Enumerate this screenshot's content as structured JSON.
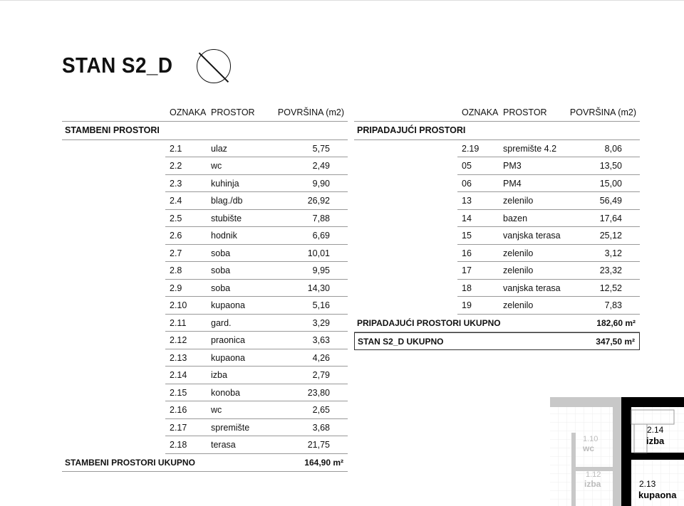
{
  "title": "STAN S2_D",
  "headers": {
    "oznaka": "OZNAKA",
    "prostor": "PROSTOR",
    "povrsina": "POVRŠINA (m2)"
  },
  "left": {
    "section": "STAMBENI PROSTORI",
    "rows": [
      [
        "2.1",
        "ulaz",
        "5,75"
      ],
      [
        "2.2",
        "wc",
        "2,49"
      ],
      [
        "2.3",
        "kuhinja",
        "9,90"
      ],
      [
        "2.4",
        "blag./db",
        "26,92"
      ],
      [
        "2.5",
        "stubište",
        "7,88"
      ],
      [
        "2.6",
        "hodnik",
        "6,69"
      ],
      [
        "2.7",
        "soba",
        "10,01"
      ],
      [
        "2.8",
        "soba",
        "9,95"
      ],
      [
        "2.9",
        "soba",
        "14,30"
      ],
      [
        "2.10",
        "kupaona",
        "5,16"
      ],
      [
        "2.11",
        "gard.",
        "3,29"
      ],
      [
        "2.12",
        "praonica",
        "3,63"
      ],
      [
        "2.13",
        "kupaona",
        "4,26"
      ],
      [
        "2.14",
        "izba",
        "2,79"
      ],
      [
        "2.15",
        "konoba",
        "23,80"
      ],
      [
        "2.16",
        "wc",
        "2,65"
      ],
      [
        "2.17",
        "spremište",
        "3,68"
      ],
      [
        "2.18",
        "terasa",
        "21,75"
      ]
    ],
    "total_label": "STAMBENI PROSTORI UKUPNO",
    "total_value": "164,90 m²"
  },
  "right": {
    "section": "PRIPADAJUĆI PROSTORI",
    "rows": [
      [
        "2.19",
        "spremište 4.2",
        "8,06"
      ],
      [
        "05",
        "PM3",
        "13,50"
      ],
      [
        "06",
        "PM4",
        "15,00"
      ],
      [
        "13",
        "zelenilo",
        "56,49"
      ],
      [
        "14",
        "bazen",
        "17,64"
      ],
      [
        "15",
        "vanjska terasa",
        "25,12"
      ],
      [
        "16",
        "zelenilo",
        "3,12"
      ],
      [
        "17",
        "zelenilo",
        "23,32"
      ],
      [
        "18",
        "vanjska terasa",
        "12,52"
      ],
      [
        "19",
        "zelenilo",
        "7,83"
      ]
    ],
    "total_label": "PRIPADAJUĆI PROSTORI UKUPNO",
    "total_value": "182,60 m²",
    "grand_label": "STAN S2_D UKUPNO",
    "grand_value": "347,50 m²"
  },
  "plan": {
    "labels": [
      [
        "1.10",
        "wc"
      ],
      [
        "1.12",
        "izba"
      ],
      [
        "2.14",
        "izba"
      ],
      [
        "2.13",
        "kupaona"
      ]
    ]
  }
}
